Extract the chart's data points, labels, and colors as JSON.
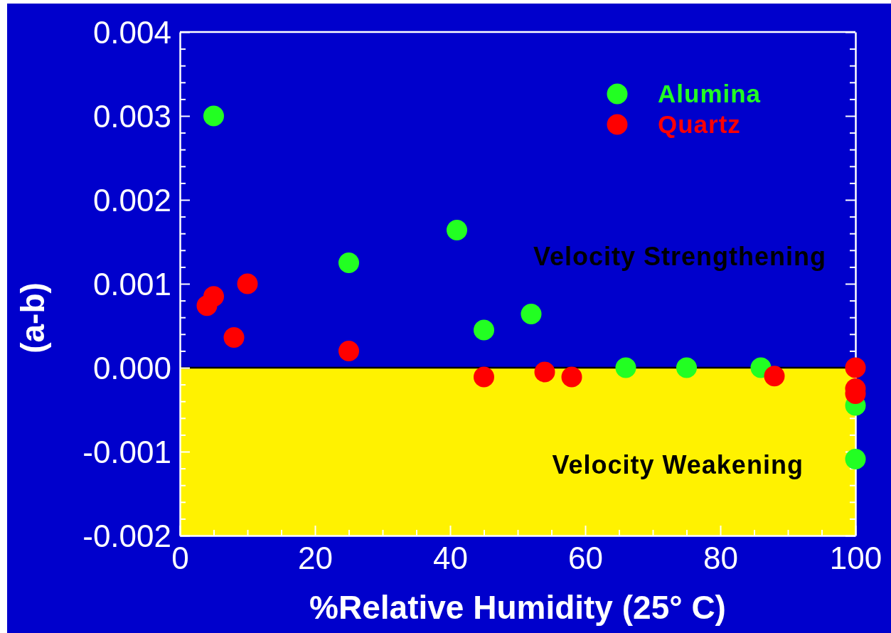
{
  "chart_data": {
    "type": "scatter",
    "xlabel": "%Relative Humidity (25° C)",
    "ylabel": "(a-b)",
    "xlim": [
      0,
      100
    ],
    "ylim": [
      -0.002,
      0.004
    ],
    "xticks": [
      0,
      {
        "value": 5,
        "label": null
      },
      {
        "value": 10,
        "label": null
      },
      {
        "value": 15,
        "label": null
      },
      20,
      {
        "value": 25,
        "label": null
      },
      {
        "value": 30,
        "label": null
      },
      {
        "value": 35,
        "label": null
      },
      40,
      {
        "value": 45,
        "label": null
      },
      {
        "value": 50,
        "label": null
      },
      {
        "value": 55,
        "label": null
      },
      60,
      {
        "value": 65,
        "label": null
      },
      {
        "value": 70,
        "label": null
      },
      {
        "value": 75,
        "label": null
      },
      80,
      {
        "value": 85,
        "label": null
      },
      {
        "value": 90,
        "label": null
      },
      {
        "value": 95,
        "label": null
      },
      100
    ],
    "yticks": [
      -0.002,
      {
        "value": -0.0018,
        "label": null
      },
      {
        "value": -0.0016,
        "label": null
      },
      {
        "value": -0.0014,
        "label": null
      },
      {
        "value": -0.0012,
        "label": null
      },
      -0.001,
      {
        "value": -0.0008,
        "label": null
      },
      {
        "value": -0.0006,
        "label": null
      },
      {
        "value": -0.0004,
        "label": null
      },
      {
        "value": -0.0002,
        "label": null
      },
      {
        "value": 0,
        "label": "0.000"
      },
      {
        "value": 0.0002,
        "label": null
      },
      {
        "value": 0.0004,
        "label": null
      },
      {
        "value": 0.0006,
        "label": null
      },
      {
        "value": 0.0008,
        "label": null
      },
      0.001,
      {
        "value": 0.0012,
        "label": null
      },
      {
        "value": 0.0014,
        "label": null
      },
      {
        "value": 0.0016,
        "label": null
      },
      {
        "value": 0.0018,
        "label": null
      },
      0.002,
      {
        "value": 0.0022,
        "label": null
      },
      {
        "value": 0.0024,
        "label": null
      },
      {
        "value": 0.0026,
        "label": null
      },
      {
        "value": 0.0028,
        "label": null
      },
      0.003,
      {
        "value": 0.0032,
        "label": null
      },
      {
        "value": 0.0034,
        "label": null
      },
      {
        "value": 0.0036,
        "label": null
      },
      {
        "value": 0.0038,
        "label": null
      },
      0.004
    ],
    "series": [
      {
        "name": "Alumina",
        "color": "#22ff22",
        "x": [
          5,
          25,
          41,
          45,
          52,
          66,
          75,
          86,
          100,
          100
        ],
        "values": [
          0.003,
          0.00125,
          0.00164,
          0.00045,
          0.00064,
          0,
          0,
          0,
          -0.00045,
          -0.00109
        ]
      },
      {
        "name": "Quartz",
        "color": "#ff0000",
        "x": [
          4,
          5,
          8,
          10,
          25,
          45,
          54,
          58,
          88,
          100,
          100,
          100
        ],
        "values": [
          0.00074,
          0.00085,
          0.00036,
          0.001,
          0.0002,
          -0.00011,
          -5e-05,
          -0.00011,
          -0.0001,
          0,
          -0.00025,
          -0.00031
        ]
      }
    ],
    "marker": "circle",
    "legend": "top right",
    "grid": false,
    "bands": [
      {
        "axis": "y",
        "from": -0.002,
        "to": 0,
        "label": "Velocity Weakening",
        "color": "#fff200"
      }
    ],
    "ref_lines": [
      {
        "axis": "y",
        "value": 0,
        "color": "#000000"
      }
    ],
    "annotations": [
      "Velocity Strengthening"
    ]
  }
}
